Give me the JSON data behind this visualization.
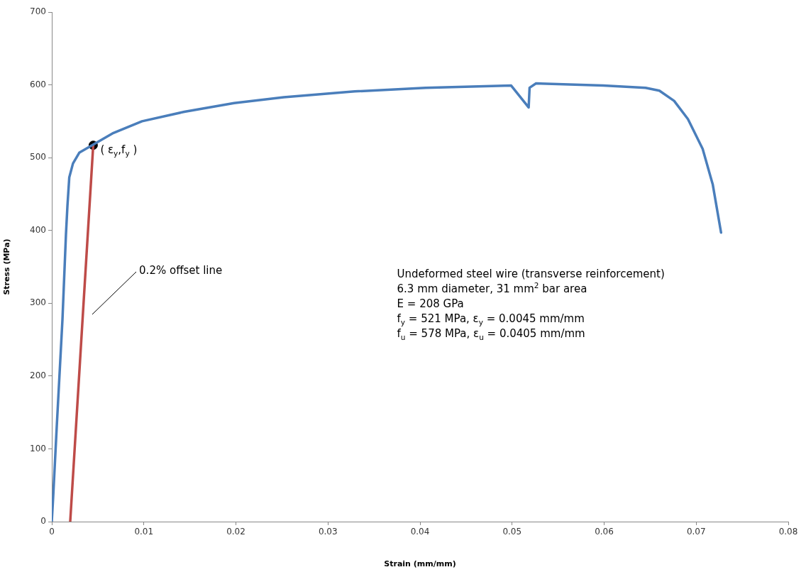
{
  "chart_data": {
    "type": "line",
    "xlabel": "Strain (mm/mm)",
    "ylabel": "Stress (MPa)",
    "xlim": [
      0,
      0.08
    ],
    "xticks": [
      0,
      0.01,
      0.02,
      0.03,
      0.04,
      0.05,
      0.06,
      0.07,
      0.08
    ],
    "ylim": [
      0,
      700
    ],
    "yticks": [
      0,
      100,
      200,
      300,
      400,
      500,
      600,
      700
    ],
    "grid": false,
    "legend": false,
    "marker": "none",
    "line_style": "solid",
    "series": [
      {
        "color": "#4a7ebb",
        "x": [
          0,
          0.00015,
          0.00054,
          0.00116,
          0.00154,
          0.0017,
          0.0019,
          0.0023,
          0.003,
          0.0045,
          0.0067,
          0.0098,
          0.0144,
          0.0198,
          0.0252,
          0.0329,
          0.0406,
          0.0499,
          0.0518,
          0.0519,
          0.0526,
          0.0599,
          0.0645,
          0.066,
          0.0676,
          0.0691,
          0.0707,
          0.0718,
          0.0727
        ],
        "values": [
          0,
          34,
          131,
          278,
          395,
          434,
          473,
          492,
          507,
          518,
          534,
          550,
          563,
          575,
          583,
          591,
          596,
          599,
          569,
          596,
          602,
          599,
          596,
          592,
          578,
          553,
          512,
          463,
          397
        ]
      },
      {
        "type": "line",
        "color": "#be4b48",
        "x": [
          0.002,
          0.0045
        ],
        "values": [
          0,
          517
        ]
      },
      {
        "type": "scatter",
        "color": "#000000",
        "marker": "circle",
        "x": [
          0.0045
        ],
        "values": [
          517
        ]
      }
    ],
    "annotations": [
      {
        "text": "( ε$_{y}$,f$_{y}$ )",
        "x": 0.0045,
        "y": 517
      },
      "0.2% offset line",
      "Undeformed steel wire (transverse reinforcement)",
      "6.3 mm diameter, 31 mm$^{2}$ bar area",
      "E = 208 GPa",
      "f$_{y}$ = 521 MPa, ε$_{y}$ = 0.0045 mm/mm",
      "f$_{u}$ = 578 MPa, ε$_{u}$ = 0.0405 mm/mm"
    ]
  }
}
